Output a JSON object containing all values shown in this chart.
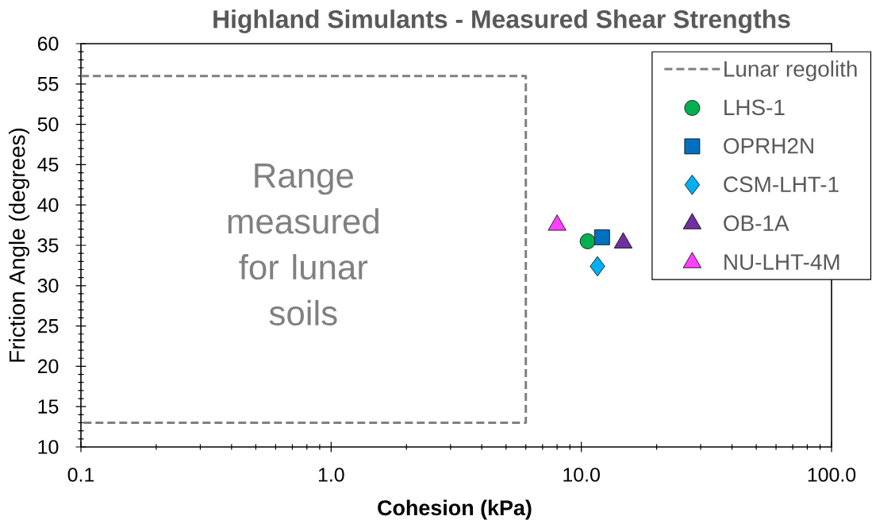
{
  "chart_data": {
    "type": "scatter",
    "title": "Highland Simulants - Measured Shear Strengths",
    "xlabel": "Cohesion (kPa)",
    "ylabel": "Friction Angle (degrees)",
    "log": "x",
    "xlim": [
      0.1,
      100
    ],
    "xticks": [
      0.1,
      {
        "value": 1,
        "label": "1.0"
      },
      {
        "value": 10,
        "label": "10.0"
      },
      {
        "value": 100,
        "label": "100.0"
      }
    ],
    "ylim": [
      10,
      60
    ],
    "yticks": [
      10,
      15,
      20,
      25,
      30,
      35,
      40,
      45,
      50,
      55,
      60
    ],
    "legend": "top right",
    "series": [
      {
        "name": "Lunar regolith",
        "type": "line",
        "color": "#808080",
        "line_style": "dashed",
        "marker": "none",
        "x": [
          0.1,
          6,
          6,
          0.1
        ],
        "values": [
          56,
          56,
          13,
          13
        ]
      },
      {
        "name": "LHS-1",
        "color": "#00b050",
        "marker": "circle",
        "x": [
          10.6
        ],
        "values": [
          35.5
        ]
      },
      {
        "name": "OPRH2N",
        "color": "#0070c0",
        "marker": "square",
        "x": [
          12.1
        ],
        "values": [
          36
        ]
      },
      {
        "name": "CSM-LHT-1",
        "color": "#00b0f0",
        "marker": "diamond",
        "x": [
          11.6
        ],
        "values": [
          32.4
        ]
      },
      {
        "name": "OB-1A",
        "color": "#7030a0",
        "marker": "triangle",
        "x": [
          14.7
        ],
        "values": [
          35.3
        ]
      },
      {
        "name": "NU-LHT-4M",
        "color": "#ff40ff",
        "marker": "triangle",
        "x": [
          8
        ],
        "values": [
          37.5
        ]
      }
    ],
    "annotations": [
      "Range measured for lunar soils"
    ]
  }
}
